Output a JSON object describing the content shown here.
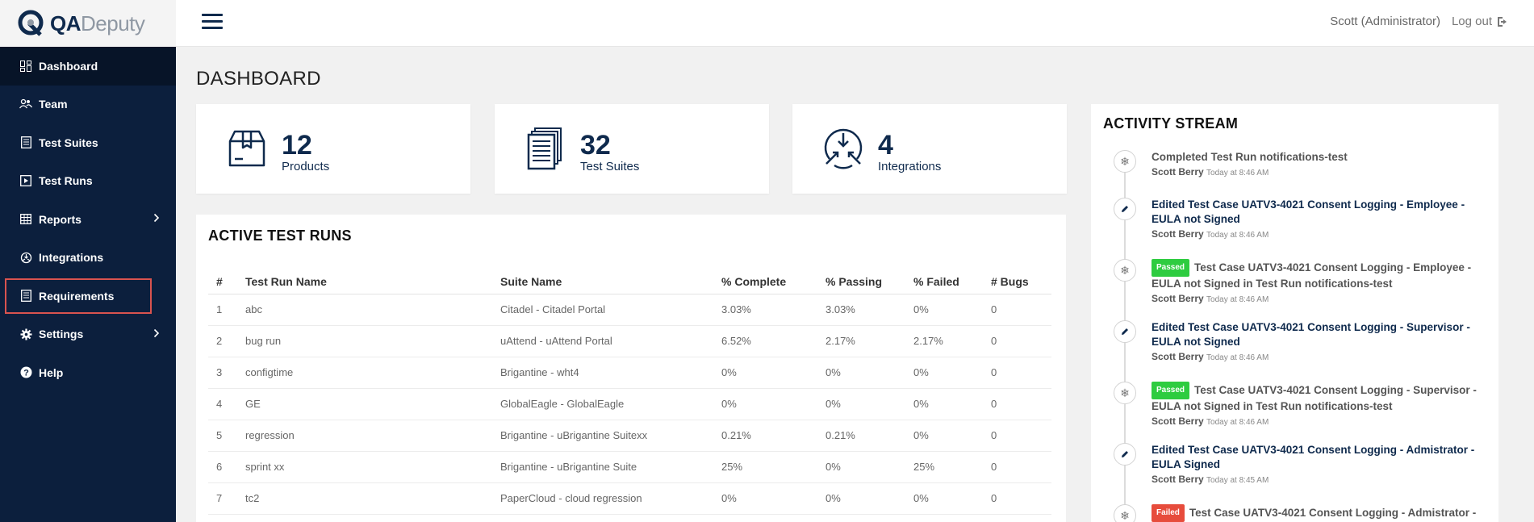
{
  "brand": {
    "logo_bold": "QA",
    "logo_light": "Deputy"
  },
  "topbar": {
    "user": "Scott (Administrator)",
    "logout": "Log out"
  },
  "sidebar": {
    "items": [
      {
        "label": "Dashboard",
        "icon": "dashboard-icon"
      },
      {
        "label": "Team",
        "icon": "team-icon"
      },
      {
        "label": "Test Suites",
        "icon": "test-suites-icon"
      },
      {
        "label": "Test Runs",
        "icon": "test-runs-icon"
      },
      {
        "label": "Reports",
        "icon": "reports-icon"
      },
      {
        "label": "Integrations",
        "icon": "integrations-icon"
      },
      {
        "label": "Requirements",
        "icon": "requirements-icon"
      },
      {
        "label": "Settings",
        "icon": "settings-icon"
      },
      {
        "label": "Help",
        "icon": "help-icon"
      }
    ]
  },
  "page": {
    "title": "DASHBOARD"
  },
  "cards": [
    {
      "value": "12",
      "label": "Products",
      "icon": "box-icon"
    },
    {
      "value": "32",
      "label": "Test Suites",
      "icon": "documents-icon"
    },
    {
      "value": "4",
      "label": "Integrations",
      "icon": "integrations-icon"
    }
  ],
  "active_runs": {
    "title": "ACTIVE TEST RUNS",
    "headers": [
      "#",
      "Test Run Name",
      "Suite Name",
      "% Complete",
      "% Passing",
      "% Failed",
      "# Bugs"
    ],
    "rows": [
      [
        "1",
        "abc",
        "Citadel - Citadel Portal",
        "3.03%",
        "3.03%",
        "0%",
        "0"
      ],
      [
        "2",
        "bug run",
        "uAttend - uAttend Portal",
        "6.52%",
        "2.17%",
        "2.17%",
        "0"
      ],
      [
        "3",
        "configtime",
        "Brigantine - wht4",
        "0%",
        "0%",
        "0%",
        "0"
      ],
      [
        "4",
        "GE",
        "GlobalEagle - GlobalEagle",
        "0%",
        "0%",
        "0%",
        "0"
      ],
      [
        "5",
        "regression",
        "Brigantine - uBrigantine Suitexx",
        "0.21%",
        "0.21%",
        "0%",
        "0"
      ],
      [
        "6",
        "sprint xx",
        "Brigantine - uBrigantine Suite",
        "25%",
        "0%",
        "25%",
        "0"
      ],
      [
        "7",
        "tc2",
        "PaperCloud - cloud regression",
        "0%",
        "0%",
        "0%",
        "0"
      ]
    ]
  },
  "activity": {
    "title": "ACTIVITY STREAM",
    "items": [
      {
        "icon": "snowflake-icon",
        "badge": "",
        "text": "Completed Test Run notifications-test",
        "user": "Scott Berry",
        "time": "Today at 8:46 AM"
      },
      {
        "icon": "pencil-icon",
        "badge": "",
        "text": "Edited Test Case UATV3-4021 Consent Logging - Employee - EULA not Signed",
        "user": "Scott Berry",
        "time": "Today at 8:46 AM"
      },
      {
        "icon": "snowflake-icon",
        "badge": "Passed",
        "text": "Test Case UATV3-4021 Consent Logging - Employee - EULA not Signed in Test Run notifications-test",
        "user": "Scott Berry",
        "time": "Today at 8:46 AM"
      },
      {
        "icon": "pencil-icon",
        "badge": "",
        "text": "Edited Test Case UATV3-4021 Consent Logging - Supervisor - EULA not Signed",
        "user": "Scott Berry",
        "time": "Today at 8:46 AM"
      },
      {
        "icon": "snowflake-icon",
        "badge": "Passed",
        "text": "Test Case UATV3-4021 Consent Logging - Supervisor - EULA not Signed in Test Run notifications-test",
        "user": "Scott Berry",
        "time": "Today at 8:46 AM"
      },
      {
        "icon": "pencil-icon",
        "badge": "",
        "text": "Edited Test Case UATV3-4021 Consent Logging - Admistrator - EULA Signed",
        "user": "Scott Berry",
        "time": "Today at 8:45 AM"
      },
      {
        "icon": "snowflake-icon",
        "badge": "Failed",
        "text": "Test Case UATV3-4021 Consent Logging - Admistrator -",
        "user": "",
        "time": ""
      }
    ]
  },
  "colors": {
    "navy": "#0c1f3d",
    "brand": "#0f2a4d",
    "passed": "#2ecc40",
    "failed": "#e74c3c",
    "highlight": "#d9534f"
  }
}
